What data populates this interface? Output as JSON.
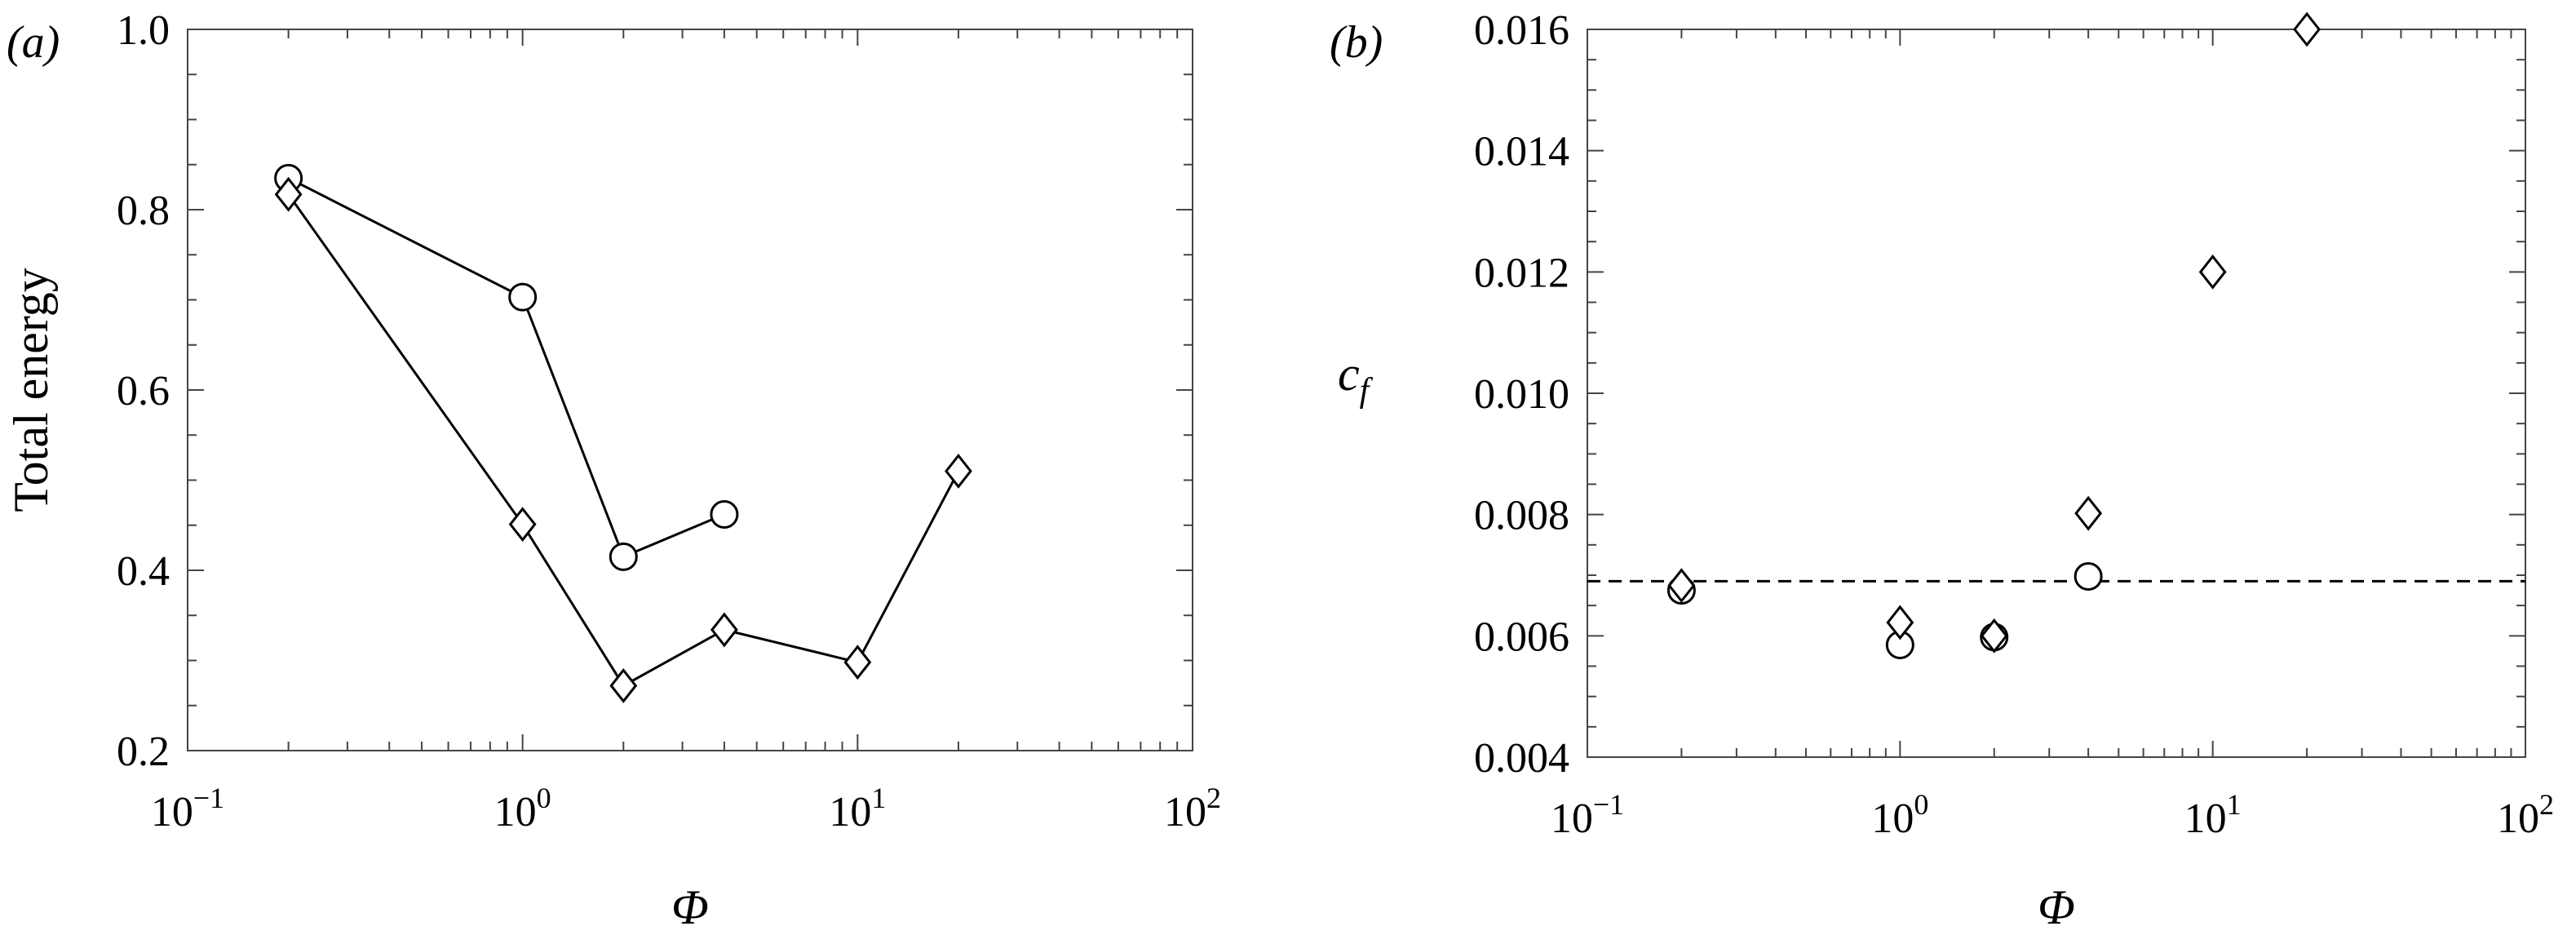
{
  "chart_data": [
    {
      "type": "line",
      "panel_label": "(a)",
      "xlabel": "Φ",
      "ylabel": "Total energy",
      "xscale": "log",
      "xlim": [
        0.1,
        100
      ],
      "ylim": [
        0.2,
        1.0
      ],
      "x_ticks": [
        {
          "value": 0.1,
          "base": "10",
          "exp": "−1"
        },
        {
          "value": 1,
          "base": "10",
          "exp": "0"
        },
        {
          "value": 10,
          "base": "10",
          "exp": "1"
        },
        {
          "value": 100,
          "base": "10",
          "exp": "2"
        }
      ],
      "y_ticks": [
        {
          "value": 0.2,
          "label": "0.2"
        },
        {
          "value": 0.4,
          "label": "0.4"
        },
        {
          "value": 0.6,
          "label": "0.6"
        },
        {
          "value": 0.8,
          "label": "0.8"
        },
        {
          "value": 1.0,
          "label": "1.0"
        }
      ],
      "series": [
        {
          "marker": "circle",
          "connected": true,
          "x": [
            0.2,
            1,
            2,
            4
          ],
          "y": [
            0.835,
            0.703,
            0.415,
            0.462
          ]
        },
        {
          "marker": "diamond",
          "connected": true,
          "x": [
            0.2,
            1,
            2,
            4,
            10,
            20
          ],
          "y": [
            0.817,
            0.451,
            0.272,
            0.334,
            0.298,
            0.51
          ]
        }
      ],
      "grid": false
    },
    {
      "type": "scatter",
      "panel_label": "(b)",
      "xlabel": "Φ",
      "ylabel": "c",
      "ylabel_subscript": "f",
      "xscale": "log",
      "xlim": [
        0.1,
        100
      ],
      "ylim": [
        0.004,
        0.016
      ],
      "x_ticks": [
        {
          "value": 0.1,
          "base": "10",
          "exp": "−1"
        },
        {
          "value": 1,
          "base": "10",
          "exp": "0"
        },
        {
          "value": 10,
          "base": "10",
          "exp": "1"
        },
        {
          "value": 100,
          "base": "10",
          "exp": "2"
        }
      ],
      "y_ticks": [
        {
          "value": 0.004,
          "label": "0.004"
        },
        {
          "value": 0.006,
          "label": "0.006"
        },
        {
          "value": 0.008,
          "label": "0.008"
        },
        {
          "value": 0.01,
          "label": "0.010"
        },
        {
          "value": 0.012,
          "label": "0.012"
        },
        {
          "value": 0.014,
          "label": "0.014"
        },
        {
          "value": 0.016,
          "label": "0.016"
        }
      ],
      "series": [
        {
          "marker": "circle",
          "connected": false,
          "x": [
            0.2,
            1,
            2,
            4
          ],
          "y": [
            0.00675,
            0.00585,
            0.00598,
            0.00698
          ]
        },
        {
          "marker": "diamond",
          "connected": false,
          "x": [
            0.2,
            1,
            2,
            4,
            10,
            20
          ],
          "y": [
            0.00683,
            0.00622,
            0.006,
            0.00802,
            0.012,
            0.016
          ]
        }
      ],
      "reference_line": {
        "y": 0.0069,
        "style": "dashed"
      },
      "grid": false
    }
  ]
}
